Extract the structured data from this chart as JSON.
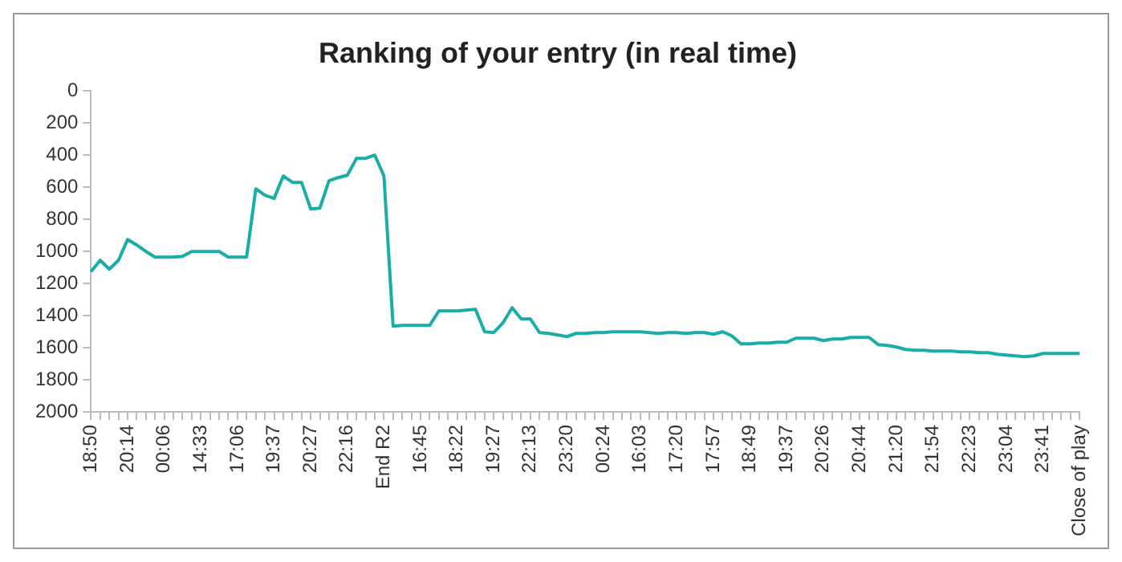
{
  "chart_data": {
    "type": "line",
    "title": "Ranking of your entry (in real time)",
    "categories": [
      "18:50",
      null,
      null,
      null,
      "20:14",
      null,
      null,
      null,
      "00:06",
      null,
      null,
      null,
      "14:33",
      null,
      null,
      null,
      "17:06",
      null,
      null,
      null,
      "19:37",
      null,
      null,
      null,
      "20:27",
      null,
      null,
      null,
      "22:16",
      null,
      null,
      null,
      "End R2",
      null,
      null,
      null,
      "16:45",
      null,
      null,
      null,
      "18:22",
      null,
      null,
      null,
      "19:27",
      null,
      null,
      null,
      "22:13",
      null,
      null,
      null,
      "23:20",
      null,
      null,
      null,
      "00:24",
      null,
      null,
      null,
      "16:03",
      null,
      null,
      null,
      "17:20",
      null,
      null,
      null,
      "17:57",
      null,
      null,
      null,
      "18:49",
      null,
      null,
      null,
      "19:37",
      null,
      null,
      null,
      "20:26",
      null,
      null,
      null,
      "20:44",
      null,
      null,
      null,
      "21:20",
      null,
      null,
      null,
      "21:54",
      null,
      null,
      null,
      "22:23",
      null,
      null,
      null,
      "23:04",
      null,
      null,
      null,
      "23:41",
      null,
      null,
      null,
      "Close of play"
    ],
    "series": [
      {
        "color": "#1aada8",
        "values": [
          1125,
          1055,
          1110,
          1055,
          925,
          960,
          1000,
          1035,
          1035,
          1035,
          1030,
          1000,
          1000,
          1000,
          1000,
          1035,
          1035,
          1035,
          610,
          650,
          670,
          530,
          570,
          570,
          735,
          730,
          560,
          540,
          525,
          420,
          420,
          400,
          530,
          1465,
          1460,
          1460,
          1460,
          1460,
          1370,
          1370,
          1370,
          1365,
          1360,
          1500,
          1505,
          1445,
          1350,
          1420,
          1420,
          1505,
          1510,
          1520,
          1530,
          1510,
          1510,
          1505,
          1505,
          1500,
          1500,
          1500,
          1500,
          1505,
          1510,
          1505,
          1505,
          1510,
          1505,
          1505,
          1515,
          1500,
          1525,
          1575,
          1575,
          1570,
          1570,
          1565,
          1565,
          1540,
          1540,
          1540,
          1555,
          1545,
          1545,
          1535,
          1535,
          1535,
          1580,
          1585,
          1595,
          1610,
          1615,
          1615,
          1620,
          1620,
          1620,
          1625,
          1625,
          1630,
          1630,
          1640,
          1645,
          1650,
          1655,
          1650,
          1635,
          1635,
          1635,
          1635,
          1635
        ]
      }
    ],
    "ylim": [
      2000,
      0
    ],
    "yticks": [
      0,
      200,
      400,
      600,
      800,
      1000,
      1200,
      1400,
      1600,
      1800,
      2000
    ],
    "grid": false,
    "legend": false,
    "marker": "none",
    "line_style": "solid"
  }
}
